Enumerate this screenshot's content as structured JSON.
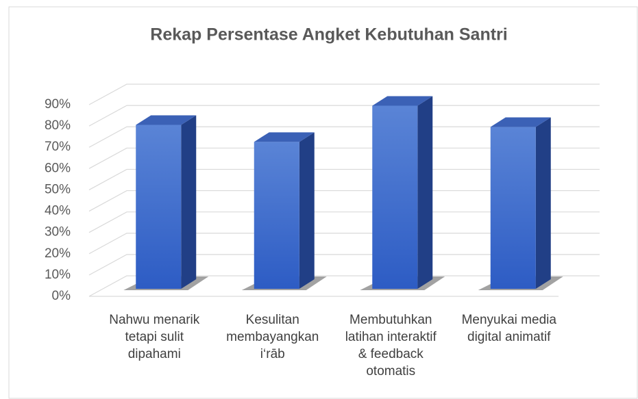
{
  "chart_data": {
    "type": "bar3d",
    "title": "Rekap Persentase Angket Kebutuhan Santri",
    "categories": [
      "Nahwu menarik\ntetapi sulit\ndipahami",
      "Kesulitan\nmembayangkan\ni‘rāb",
      "Membutuhkan\nlatihan interaktif\n& feedback\notomatis",
      "Menyukai media\ndigital animatif"
    ],
    "values": [
      77,
      69,
      86,
      76
    ],
    "color": "#3a66c9",
    "ylim": [
      0,
      90
    ],
    "yticks": [
      {
        "value": 0,
        "label": "0%"
      },
      {
        "value": 10,
        "label": "10%"
      },
      {
        "value": 20,
        "label": "20%"
      },
      {
        "value": 30,
        "label": "30%"
      },
      {
        "value": 40,
        "label": "40%"
      },
      {
        "value": 50,
        "label": "50%"
      },
      {
        "value": 60,
        "label": "60%"
      },
      {
        "value": 70,
        "label": "70%"
      },
      {
        "value": 80,
        "label": "80%"
      },
      {
        "value": 90,
        "label": "90%"
      }
    ],
    "grid": true
  }
}
